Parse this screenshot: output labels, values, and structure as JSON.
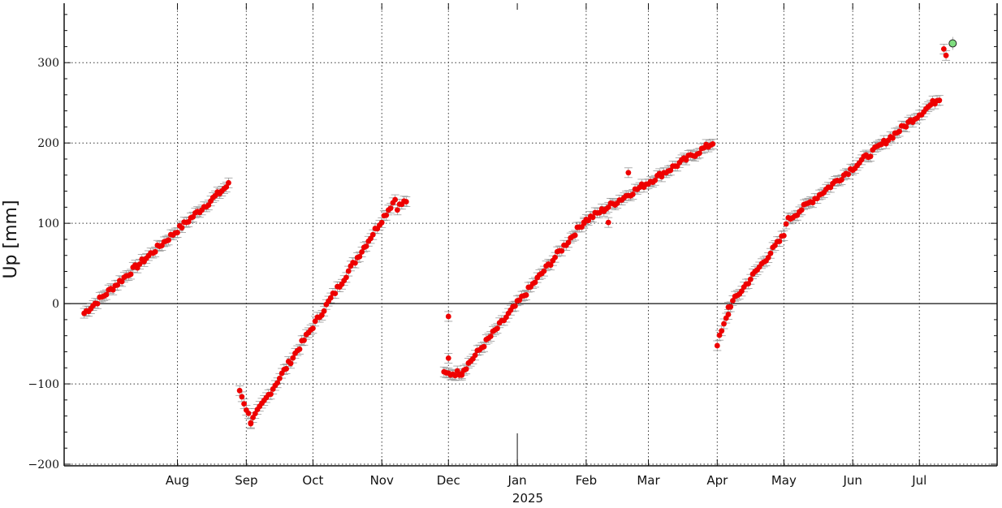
{
  "chart_data": {
    "type": "scatter",
    "title": "",
    "xlabel": "2025",
    "ylabel": "Up [mm]",
    "ylim": [
      -202,
      374
    ],
    "xlim_days": [
      -204,
      216
    ],
    "x_ticks": [
      {
        "label": "Aug",
        "day": -153
      },
      {
        "label": "Sep",
        "day": -122
      },
      {
        "label": "Oct",
        "day": -92
      },
      {
        "label": "Nov",
        "day": -61
      },
      {
        "label": "Dec",
        "day": -31
      },
      {
        "label": "Jan",
        "day": 0
      },
      {
        "label": "Feb",
        "day": 31
      },
      {
        "label": "Mar",
        "day": 59
      },
      {
        "label": "Apr",
        "day": 90
      },
      {
        "label": "May",
        "day": 120
      },
      {
        "label": "Jun",
        "day": 151
      },
      {
        "label": "Jul",
        "day": 181
      }
    ],
    "y_ticks": [
      {
        "label": "−200",
        "value": -200
      },
      {
        "label": "−100",
        "value": -100
      },
      {
        "label": "0",
        "value": 0
      },
      {
        "label": "100",
        "value": 100
      },
      {
        "label": "200",
        "value": 200
      },
      {
        "label": "300",
        "value": 300
      }
    ],
    "grid": true,
    "zero_line": true,
    "point_color": "#ee0000",
    "errorbar_color": "#999999",
    "highlight_color": "#7fdd7f",
    "segments": [
      {
        "start": -195,
        "end": -130,
        "y0": -12,
        "y1": 148
      },
      {
        "start": -125,
        "end": -120,
        "y0": -108,
        "y1": -146
      },
      {
        "start": -120,
        "end": -55,
        "y0": -148,
        "y1": 130
      },
      {
        "start": -54,
        "end": -50,
        "y0": 120,
        "y1": 128
      },
      {
        "start": -33,
        "end": -25,
        "y0": -88,
        "y1": -86
      },
      {
        "start": -25,
        "end": 30,
        "y0": -85,
        "y1": 102
      },
      {
        "start": 30,
        "end": 88,
        "y0": 102,
        "y1": 200
      },
      {
        "start": 90,
        "end": 95,
        "y0": -50,
        "y1": -12
      },
      {
        "start": 95,
        "end": 120,
        "y0": -5,
        "y1": 85
      },
      {
        "start": 121,
        "end": 190,
        "y0": 102,
        "y1": 256
      }
    ],
    "isolated_points": [
      {
        "x": -31,
        "y": -16
      },
      {
        "x": -31,
        "y": -68
      },
      {
        "x": 50,
        "y": 163
      },
      {
        "x": 41,
        "y": 101
      },
      {
        "x": 192,
        "y": 317
      },
      {
        "x": 193,
        "y": 309
      }
    ],
    "highlight_point": {
      "x": 196,
      "y": 324
    }
  }
}
